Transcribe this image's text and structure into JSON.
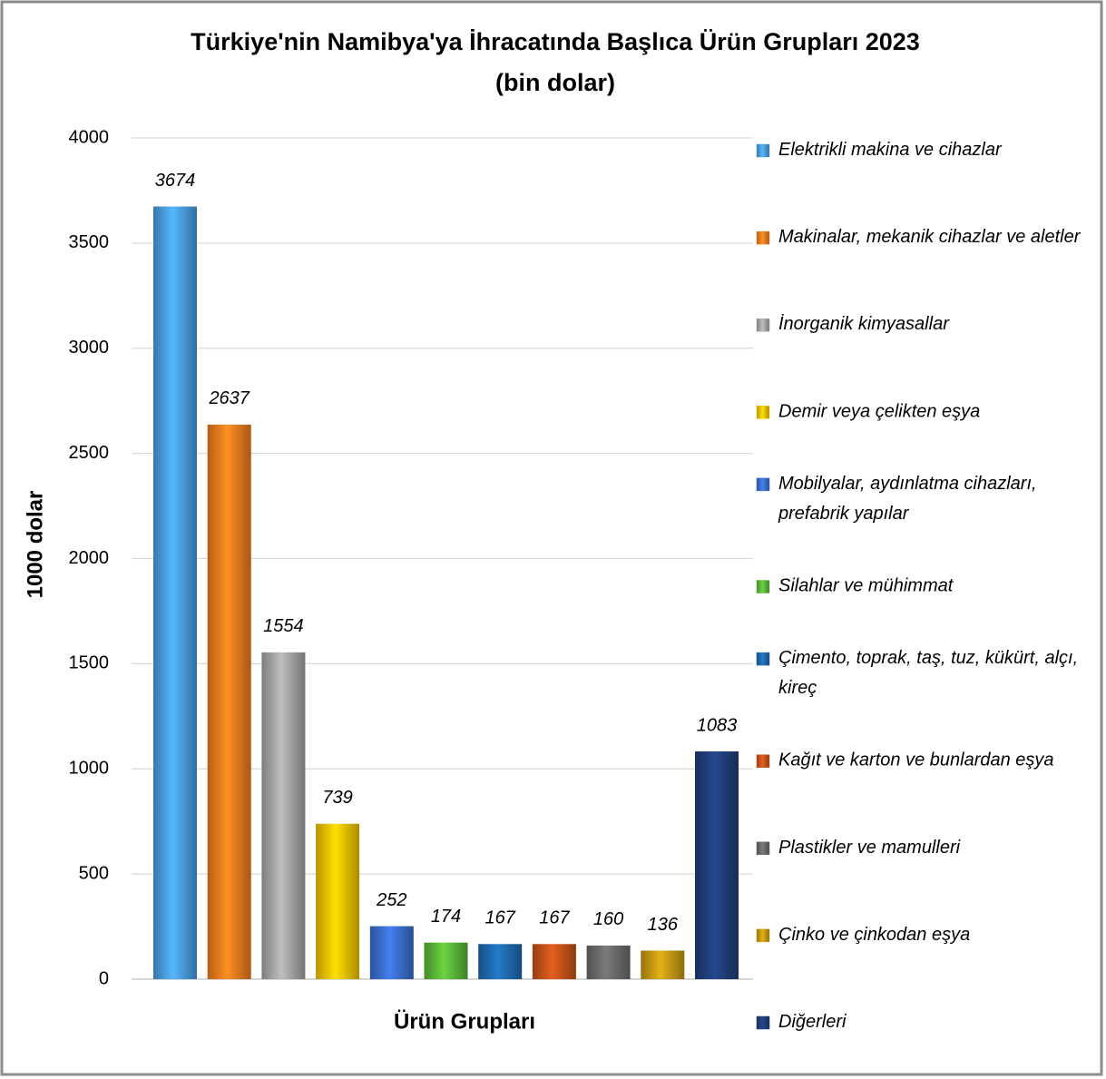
{
  "chart_data": {
    "type": "bar",
    "title": "Türkiye'nin Namibya'ya İhracatında Başlıca Ürün Grupları 2023",
    "subtitle": "(bin dolar)",
    "y_label": "1000 dolar",
    "x_label": "Ürün Grupları",
    "categories": [
      "Elektrikli makina ve cihazlar",
      "Makinalar, mekanik cihazlar ve aletler",
      "İnorganik kimyasallar",
      "Demir veya çelikten eşya",
      "Mobilyalar, aydınlatma cihazları, prefabrik yapılar",
      "Silahlar ve mühimmat",
      "Çimento, toprak, taş, tuz, kükürt, alçı, kireç",
      "Kağıt ve karton ve bunlardan eşya",
      "Plastikler ve mamulleri",
      "Çinko ve çinkodan eşya",
      "Diğerleri"
    ],
    "values": [
      3674,
      2637,
      1554,
      739,
      252,
      174,
      167,
      167,
      160,
      136,
      1083
    ],
    "colors": [
      "#4a9fe0",
      "#f07d1e",
      "#a6a6a6",
      "#f5c400",
      "#3a6fd0",
      "#5cb83a",
      "#1f6bb0",
      "#c8531a",
      "#6b6b6b",
      "#c79a12",
      "#1f3f7a"
    ],
    "ylim": [
      0,
      4000
    ],
    "yticks": [
      0,
      500,
      1000,
      1500,
      2000,
      2500,
      3000,
      3500,
      4000
    ],
    "grid": true,
    "legend": "right"
  }
}
